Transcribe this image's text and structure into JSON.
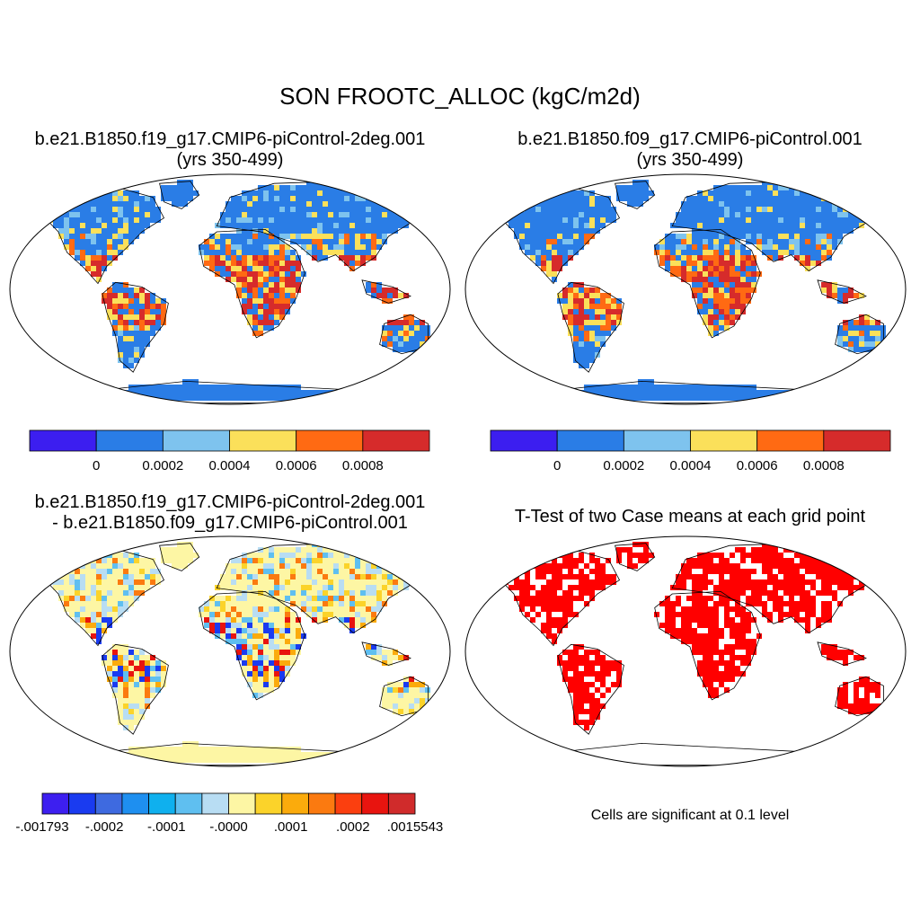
{
  "title": "SON FROOTC_ALLOC (kgC/m2d)",
  "chart_data": [
    {
      "type": "heatmap",
      "title": [
        "b.e21.B1850.f19_g17.CMIP6-piControl-2deg.001",
        "(yrs 350-499)"
      ],
      "projection": "Robinson",
      "colorbar": {
        "colors": [
          "#3c1ef0",
          "#2a7de6",
          "#7ec3ee",
          "#fbe05a",
          "#ff6a13",
          "#d62b2b"
        ],
        "tick_labels": [
          "0",
          "0.0002",
          "0.0004",
          "0.0006",
          "0.0008"
        ]
      }
    },
    {
      "type": "heatmap",
      "title": [
        "b.e21.B1850.f09_g17.CMIP6-piControl.001",
        "(yrs 350-499)"
      ],
      "projection": "Robinson",
      "colorbar": {
        "colors": [
          "#3c1ef0",
          "#2a7de6",
          "#7ec3ee",
          "#fbe05a",
          "#ff6a13",
          "#d62b2b"
        ],
        "tick_labels": [
          "0",
          "0.0002",
          "0.0004",
          "0.0006",
          "0.0008"
        ]
      }
    },
    {
      "type": "heatmap",
      "title": [
        "b.e21.B1850.f19_g17.CMIP6-piControl-2deg.001",
        "- b.e21.B1850.f09_g17.CMIP6-piControl.001"
      ],
      "projection": "Robinson",
      "colorbar": {
        "colors": [
          "#3d1ff0",
          "#1a3bf0",
          "#3e6ae0",
          "#1e8ff0",
          "#0fb0ee",
          "#5fbff0",
          "#b8ddf3",
          "#fdf6a4",
          "#fbd32a",
          "#fbab0c",
          "#fb7a10",
          "#fb3f0f",
          "#e8140f",
          "#d02b2b"
        ],
        "tick_labels": [
          "-.001793",
          "-.0002",
          "-.0001",
          "-.0000",
          ".0001",
          ".0002",
          ".0015543"
        ]
      }
    },
    {
      "type": "heatmap",
      "title": [
        "T-Test of two Case means at each grid point"
      ],
      "projection": "Robinson",
      "note": "Cells are significant at 0.1 level",
      "significant_color": "#ff0000"
    }
  ]
}
